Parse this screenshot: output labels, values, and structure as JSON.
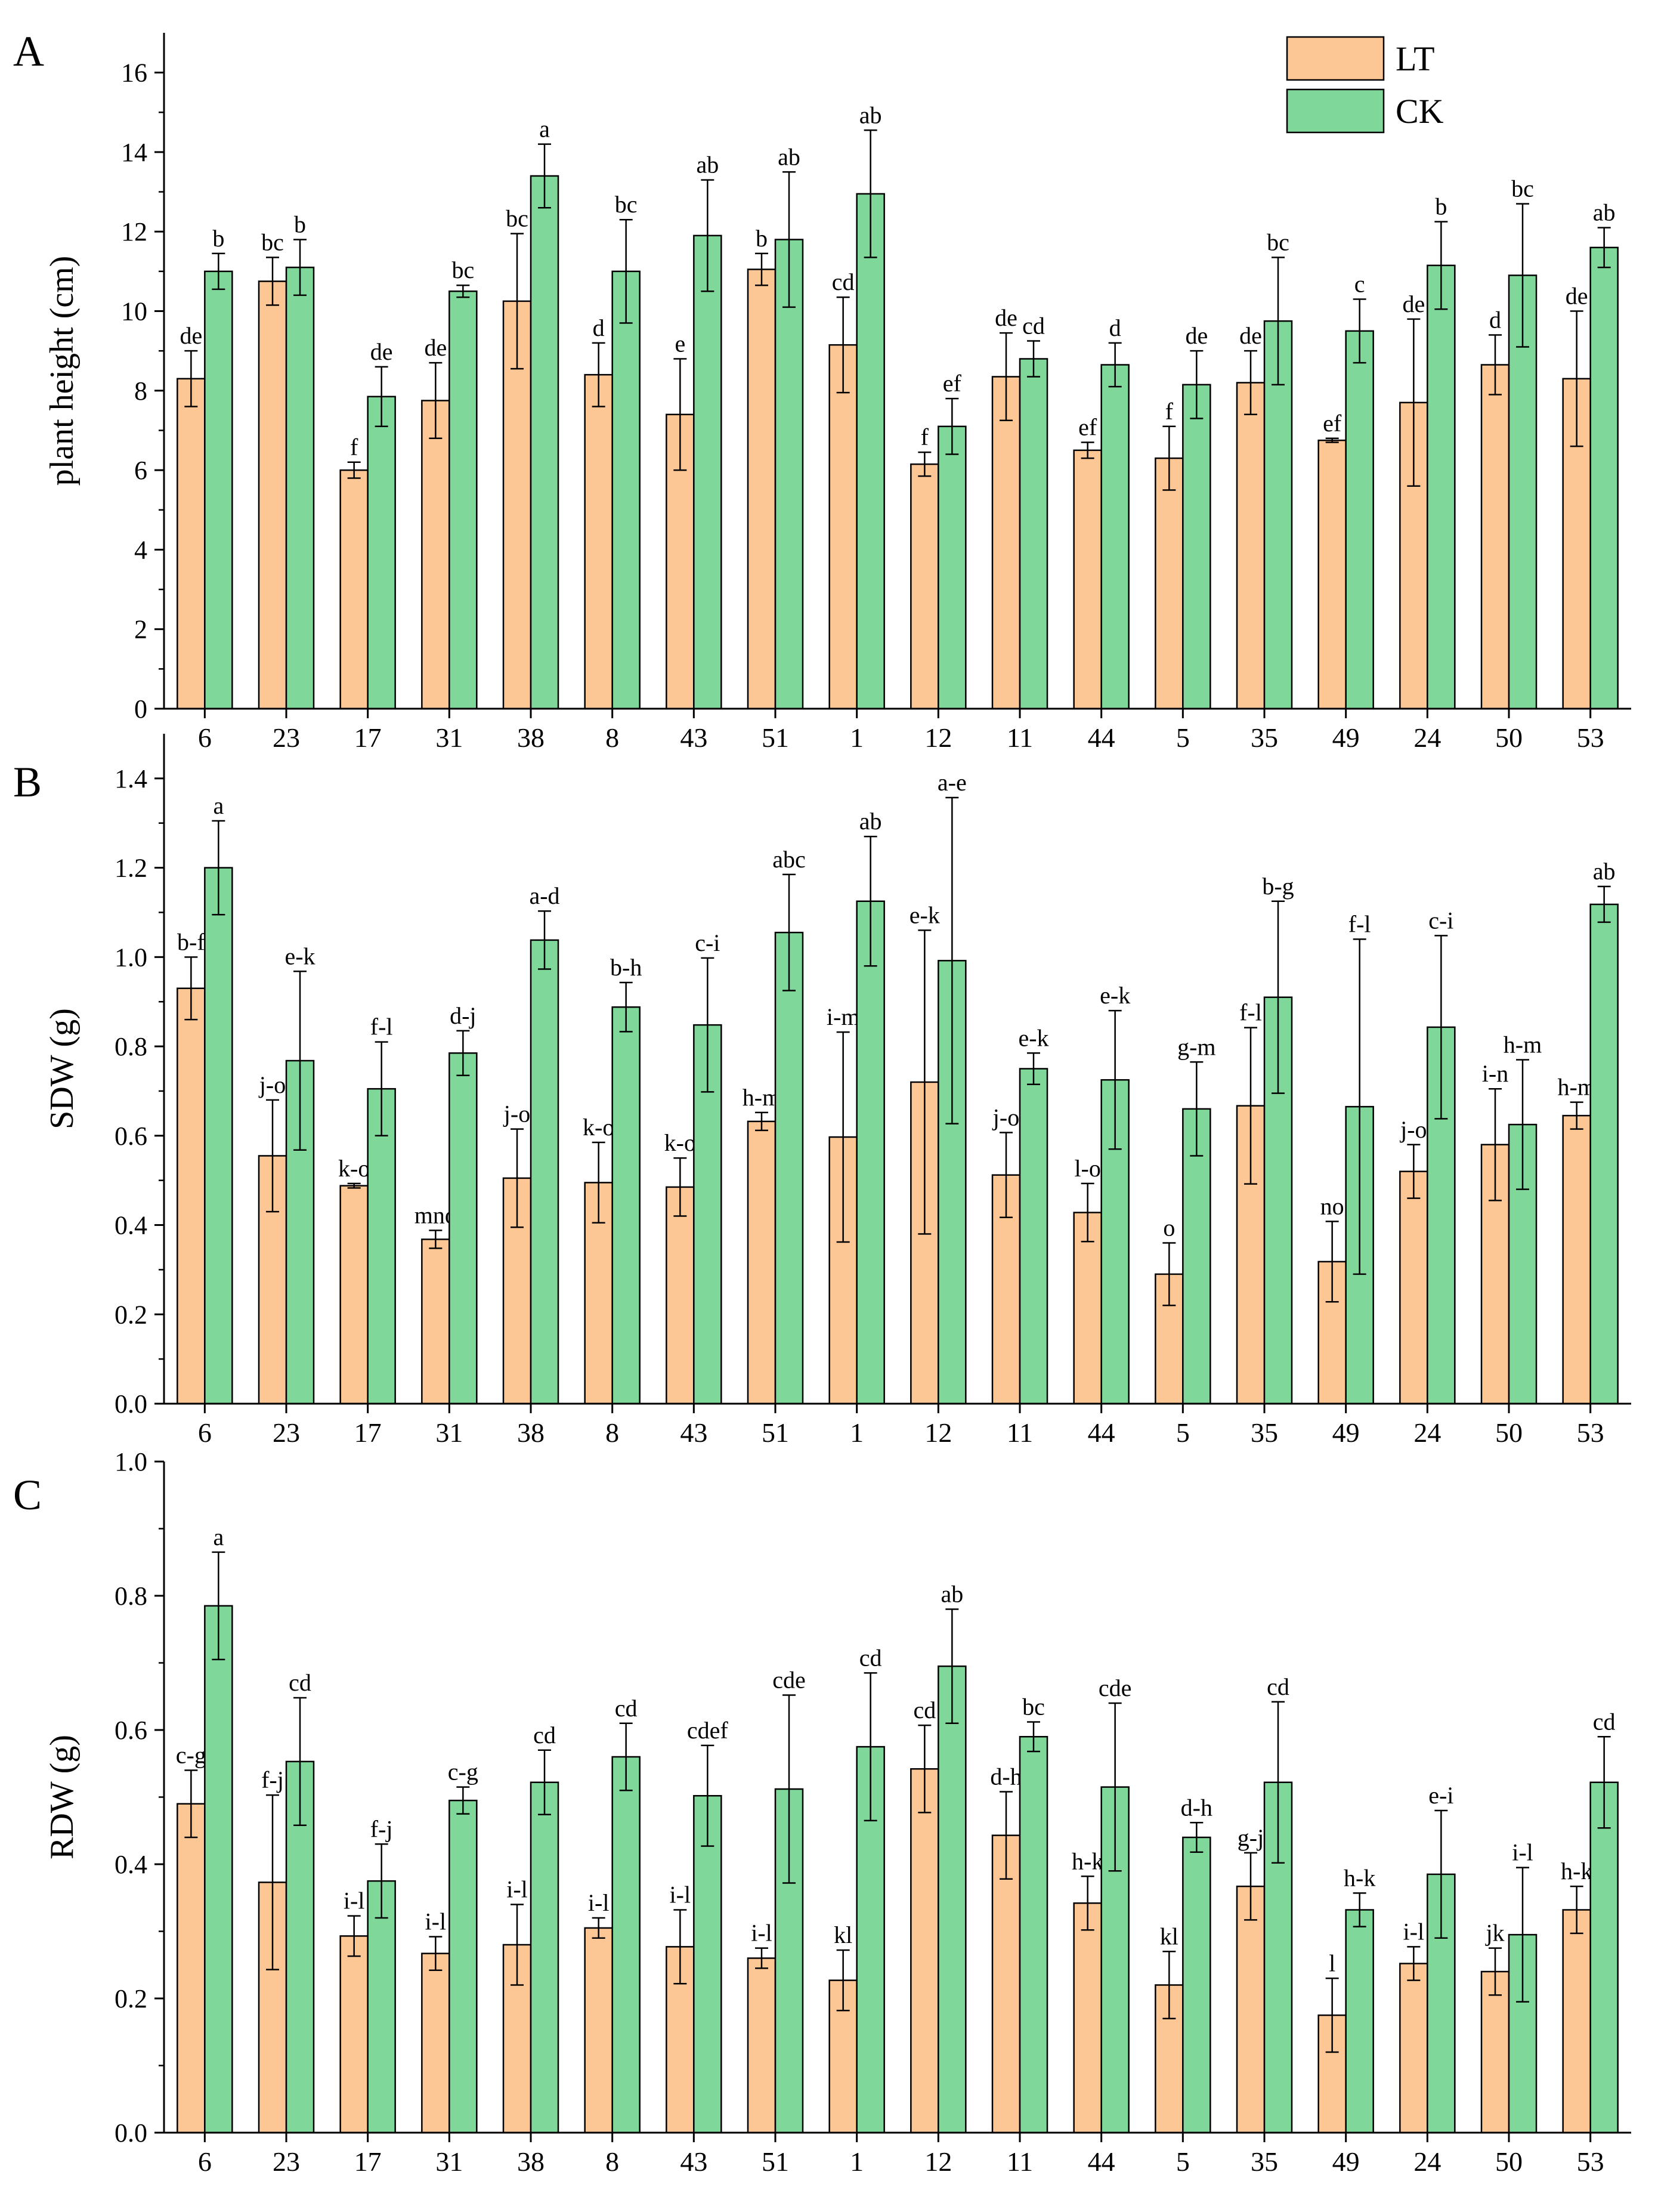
{
  "colors": {
    "LT": "#FDC695",
    "CK": "#7FD79A",
    "stroke": "#000000"
  },
  "legend": {
    "items": [
      "LT",
      "CK"
    ],
    "position": "top-right"
  },
  "categories": [
    "6",
    "23",
    "17",
    "31",
    "38",
    "8",
    "43",
    "51",
    "1",
    "12",
    "11",
    "44",
    "5",
    "35",
    "49",
    "24",
    "50",
    "53"
  ],
  "chart_data": [
    {
      "type": "bar",
      "panel": "A",
      "title": "",
      "xlabel": "",
      "ylabel": "plant height (cm)",
      "ylim": [
        0,
        17
      ],
      "yticks": [
        "0",
        "2",
        "4",
        "6",
        "8",
        "10",
        "12",
        "14",
        "16"
      ],
      "categories": [
        "6",
        "23",
        "17",
        "31",
        "38",
        "8",
        "43",
        "51",
        "1",
        "12",
        "11",
        "44",
        "5",
        "35",
        "49",
        "24",
        "50",
        "53"
      ],
      "series": [
        {
          "name": "LT",
          "values": [
            8.3,
            10.75,
            6.0,
            7.75,
            10.25,
            8.4,
            7.4,
            11.05,
            9.15,
            6.15,
            8.35,
            6.5,
            6.3,
            8.2,
            6.75,
            7.7,
            8.65,
            8.3
          ],
          "errors": [
            0.7,
            0.6,
            0.2,
            0.95,
            1.7,
            0.8,
            1.4,
            0.4,
            1.2,
            0.3,
            1.1,
            0.2,
            0.8,
            0.8,
            0.05,
            2.1,
            0.75,
            1.7
          ],
          "labels": [
            "de",
            "bc",
            "f",
            "de",
            "bc",
            "d",
            "e",
            "b",
            "cd",
            "f",
            "de",
            "ef",
            "f",
            "de",
            "ef",
            "de",
            "d",
            "de"
          ]
        },
        {
          "name": "CK",
          "values": [
            11.0,
            11.1,
            7.85,
            10.5,
            13.4,
            11.0,
            11.9,
            11.8,
            12.95,
            7.1,
            8.8,
            8.65,
            8.15,
            9.75,
            9.5,
            11.15,
            10.9,
            11.6
          ],
          "errors": [
            0.45,
            0.7,
            0.75,
            0.15,
            0.8,
            1.3,
            1.4,
            1.7,
            1.6,
            0.7,
            0.45,
            0.55,
            0.85,
            1.6,
            0.8,
            1.1,
            1.8,
            0.5
          ],
          "labels": [
            "b",
            "b",
            "de",
            "bc",
            "a",
            "bc",
            "ab",
            "ab",
            "ab",
            "ef",
            "cd",
            "d",
            "de",
            "bc",
            "c",
            "b",
            "bc",
            "ab"
          ]
        }
      ]
    },
    {
      "type": "bar",
      "panel": "B",
      "title": "",
      "xlabel": "",
      "ylabel": "SDW (g)",
      "ylim": [
        0,
        1.5
      ],
      "yticks": [
        "0.0",
        "0.2",
        "0.4",
        "0.6",
        "0.8",
        "1.0",
        "1.2",
        "1.4"
      ],
      "categories": [
        "6",
        "23",
        "17",
        "31",
        "38",
        "8",
        "43",
        "51",
        "1",
        "12",
        "11",
        "44",
        "5",
        "35",
        "49",
        "24",
        "50",
        "53"
      ],
      "series": [
        {
          "name": "LT",
          "values": [
            0.93,
            0.555,
            0.488,
            0.368,
            0.505,
            0.495,
            0.485,
            0.632,
            0.597,
            0.72,
            0.512,
            0.428,
            0.29,
            0.667,
            0.318,
            0.52,
            0.58,
            0.645
          ],
          "errors": [
            0.07,
            0.125,
            0.005,
            0.02,
            0.11,
            0.09,
            0.065,
            0.02,
            0.235,
            0.34,
            0.095,
            0.065,
            0.07,
            0.175,
            0.09,
            0.06,
            0.125,
            0.03
          ],
          "labels": [
            "b-f",
            "j-o",
            "k-o",
            "mno",
            "j-o",
            "k-o",
            "k-o",
            "h-m",
            "i-m",
            "e-k",
            "j-o",
            "l-o",
            "o",
            "f-l",
            "no",
            "j-o",
            "i-n",
            "h-m"
          ]
        },
        {
          "name": "CK",
          "values": [
            1.2,
            0.768,
            0.705,
            0.785,
            1.038,
            0.888,
            0.848,
            1.055,
            1.125,
            0.992,
            0.75,
            0.725,
            0.66,
            0.91,
            0.665,
            0.843,
            0.625,
            1.118
          ],
          "errors": [
            0.105,
            0.2,
            0.105,
            0.05,
            0.065,
            0.055,
            0.15,
            0.13,
            0.145,
            0.365,
            0.035,
            0.155,
            0.105,
            0.215,
            0.375,
            0.205,
            0.145,
            0.04
          ],
          "labels": [
            "a",
            "e-k",
            "f-l",
            "d-j",
            "a-d",
            "b-h",
            "c-i",
            "abc",
            "ab",
            "a-e",
            "e-k",
            "e-k",
            "g-m",
            "b-g",
            "f-l",
            "c-i",
            "h-m",
            "ab"
          ]
        }
      ]
    },
    {
      "type": "bar",
      "panel": "C",
      "title": "",
      "xlabel": "",
      "ylabel": "RDW (g)",
      "ylim": [
        0,
        1.0
      ],
      "yticks": [
        "0.0",
        "0.2",
        "0.4",
        "0.6",
        "0.8",
        "1.0"
      ],
      "categories": [
        "6",
        "23",
        "17",
        "31",
        "38",
        "8",
        "43",
        "51",
        "1",
        "12",
        "11",
        "44",
        "5",
        "35",
        "49",
        "24",
        "50",
        "53"
      ],
      "series": [
        {
          "name": "LT",
          "values": [
            0.49,
            0.373,
            0.293,
            0.267,
            0.28,
            0.305,
            0.277,
            0.26,
            0.227,
            0.542,
            0.443,
            0.342,
            0.22,
            0.367,
            0.175,
            0.252,
            0.24,
            0.332
          ],
          "errors": [
            0.05,
            0.13,
            0.03,
            0.025,
            0.06,
            0.015,
            0.055,
            0.015,
            0.045,
            0.065,
            0.065,
            0.04,
            0.05,
            0.05,
            0.055,
            0.025,
            0.035,
            0.035
          ],
          "labels": [
            "c-g",
            "f-j",
            "i-l",
            "i-l",
            "i-l",
            "i-l",
            "i-l",
            "i-l",
            "kl",
            "cd",
            "d-h",
            "h-k",
            "kl",
            "g-j",
            "l",
            "i-l",
            "jk",
            "h-k"
          ]
        },
        {
          "name": "CK",
          "values": [
            0.785,
            0.553,
            0.375,
            0.495,
            0.522,
            0.56,
            0.502,
            0.512,
            0.575,
            0.695,
            0.59,
            0.515,
            0.44,
            0.522,
            0.332,
            0.385,
            0.295,
            0.522
          ],
          "errors": [
            0.08,
            0.095,
            0.055,
            0.02,
            0.048,
            0.05,
            0.075,
            0.14,
            0.11,
            0.085,
            0.022,
            0.125,
            0.022,
            0.12,
            0.025,
            0.095,
            0.1,
            0.068
          ],
          "labels": [
            "a",
            "cd",
            "f-j",
            "c-g",
            "cd",
            "cd",
            "cdef",
            "cde",
            "cd",
            "ab",
            "bc",
            "cde",
            "d-h",
            "cd",
            "h-k",
            "e-i",
            "i-l",
            "cd"
          ]
        }
      ]
    }
  ]
}
